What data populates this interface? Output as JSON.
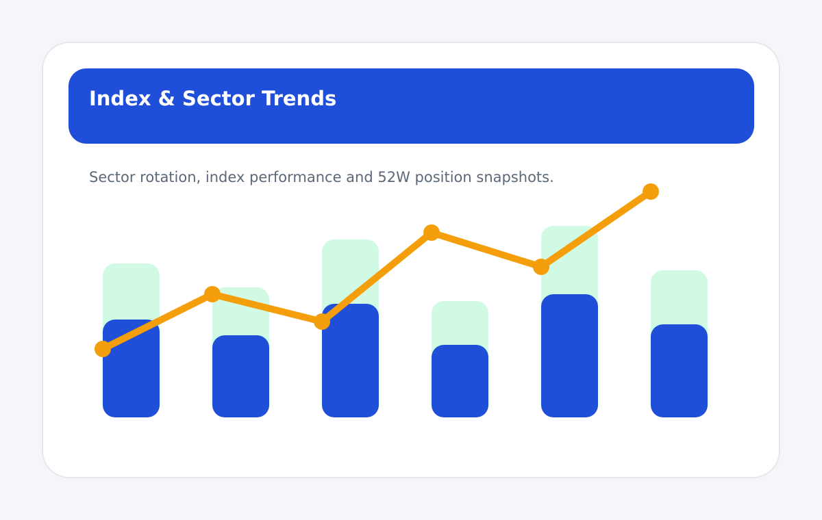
{
  "header": {
    "title": "Index & Sector Trends"
  },
  "subtitle": "Sector rotation, index performance and 52W position snapshots.",
  "colors": {
    "header_bg": "#1f4fd8",
    "bar_primary": "#1f4fd8",
    "bar_secondary": "#d1fae5",
    "line": "#f59e0b",
    "subtitle_text": "#5c6878"
  },
  "chart_data": {
    "type": "bar",
    "categories": [
      "",
      "",
      "",
      "",
      "",
      ""
    ],
    "series": [
      {
        "kind": "bar",
        "values": [
          143,
          120,
          166,
          106,
          180,
          136
        ]
      },
      {
        "kind": "bar-background",
        "values": [
          225,
          190,
          260,
          170,
          280,
          215
        ]
      },
      {
        "kind": "line",
        "values": [
          100,
          180,
          140,
          270,
          220,
          330
        ]
      }
    ],
    "ylim": [
      0,
      350
    ],
    "grid": false,
    "legend": "none"
  }
}
